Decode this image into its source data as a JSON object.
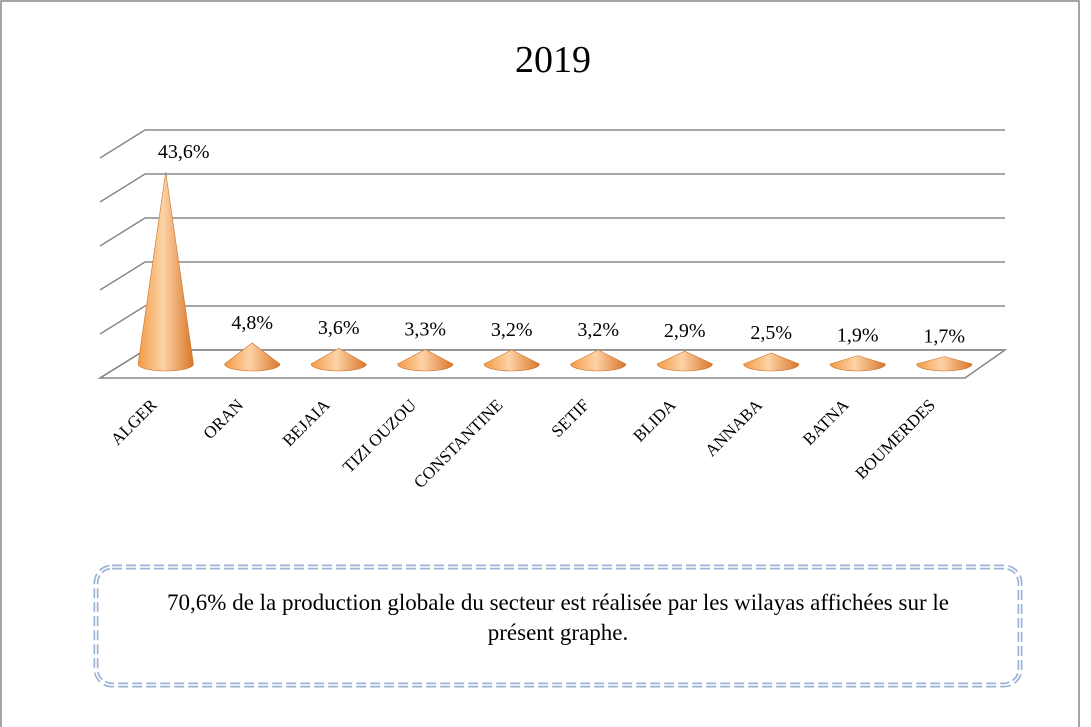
{
  "chart_data": {
    "type": "cone",
    "title": "2019",
    "categories": [
      "ALGER",
      "ORAN",
      "BEJAIA",
      "TIZI OUZOU",
      "CONSTANTINE",
      "SETIF",
      "BLIDA",
      "ANNABA",
      "BATNA",
      "BOUMERDES"
    ],
    "values": [
      43.6,
      4.8,
      3.6,
      3.3,
      3.2,
      3.2,
      2.9,
      2.5,
      1.9,
      1.7
    ],
    "value_labels": [
      "43,6%",
      "4,8%",
      "3,6%",
      "3,3%",
      "3,2%",
      "3,2%",
      "2,9%",
      "2,5%",
      "1,9%",
      "1,7%"
    ],
    "color": "#f39a45",
    "ylim": [
      0,
      50
    ],
    "yticks": [
      0,
      10,
      20,
      30,
      40,
      50
    ],
    "grid": true,
    "annotation": "70,6% de la production globale du secteur est réalisée par les wilayas affichées sur le présent graphe."
  }
}
